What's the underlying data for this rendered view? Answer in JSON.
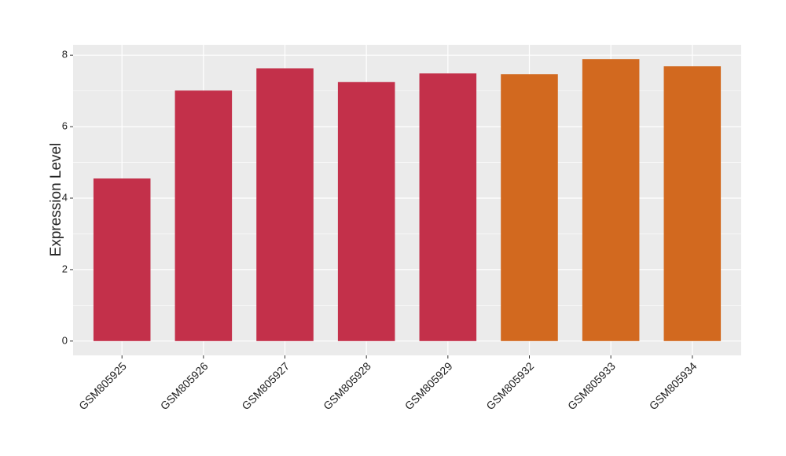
{
  "chart_data": {
    "type": "bar",
    "y_label": "Expression Level",
    "categories": [
      "GSM805925",
      "GSM805926",
      "GSM805927",
      "GSM805928",
      "GSM805929",
      "GSM805932",
      "GSM805933",
      "GSM805934"
    ],
    "values": [
      4.55,
      7.01,
      7.63,
      7.25,
      7.49,
      7.47,
      7.89,
      7.69
    ],
    "colors": [
      "#c3304a",
      "#c3304a",
      "#c3304a",
      "#c3304a",
      "#c3304a",
      "#d2691f",
      "#d2691f",
      "#d2691f"
    ],
    "ylim": [
      -0.4,
      8.29
    ],
    "yticks": [
      0,
      2,
      4,
      6,
      8
    ],
    "grid": true
  }
}
